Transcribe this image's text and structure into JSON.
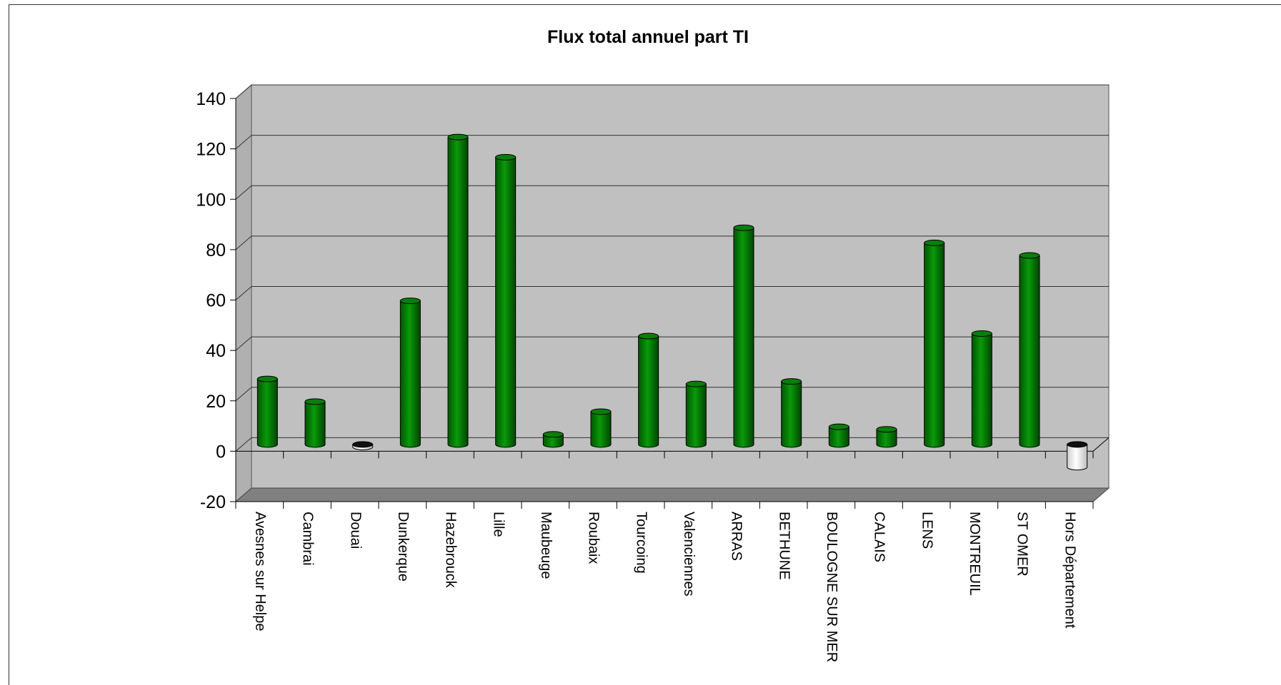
{
  "chart_data": {
    "type": "bar",
    "title": "Flux total annuel part TI",
    "xlabel": "",
    "ylabel": "",
    "ylim": [
      -20,
      140
    ],
    "yticks": [
      140,
      120,
      100,
      80,
      60,
      40,
      20,
      0,
      -20
    ],
    "grid": true,
    "legend": "none",
    "categories": [
      "Avesnes sur Helpe",
      "Cambrai",
      "Douai",
      "Dunkerque",
      "Hazebrouck",
      "Lille",
      "Maubeuge",
      "Roubaix",
      "Tourcoing",
      "Valenciennes",
      "ARRAS",
      "BETHUNE",
      "BOULOGNE SUR MER",
      "CALAIS",
      "LENS",
      "MONTREUIL",
      "ST OMER",
      "Hors Département"
    ],
    "values": [
      26,
      17,
      -1,
      57,
      122,
      114,
      4,
      13,
      43,
      24,
      86,
      25,
      7,
      6,
      80,
      44,
      75,
      -9
    ],
    "colors": {
      "positive": "#008000",
      "negative": "#ffffff",
      "wall": "#c0c0c0",
      "floor": "#808080"
    }
  }
}
